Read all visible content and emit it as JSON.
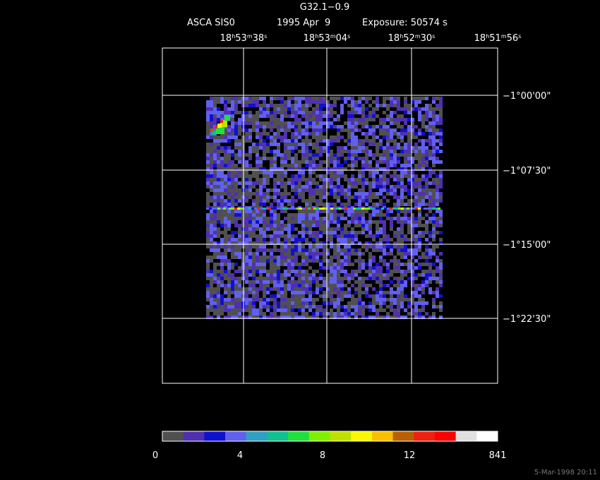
{
  "header": {
    "title": "G32.1−0.9",
    "instrument": "ASCA SIS0",
    "date": "1995 Apr  9",
    "exposure": "Exposure: 50574 s"
  },
  "ra_labels": [
    [
      "18",
      "h",
      "53",
      "m",
      "38",
      "s"
    ],
    [
      "18",
      "h",
      "53",
      "m",
      "04",
      "s"
    ],
    [
      "18",
      "h",
      "52",
      "m",
      "30",
      "s"
    ],
    [
      "18",
      "h",
      "51",
      "m",
      "56",
      "s"
    ]
  ],
  "dec_labels": [
    "−1°00'00\"",
    "−1°07'30\"",
    "−1°15'00\"",
    "−1°22'30\""
  ],
  "colorbar": {
    "colors": [
      "#505050",
      "#5030b0",
      "#1010d0",
      "#6060f0",
      "#30a0c0",
      "#10c090",
      "#20e040",
      "#80f000",
      "#c0e000",
      "#f8f800",
      "#f8c000",
      "#b86000",
      "#f02010",
      "#ff0000",
      "#e0e0e0",
      "#ffffff"
    ],
    "labels": [
      "0",
      "4",
      "8",
      "12",
      "841"
    ]
  },
  "footer": "5-Mar-1998 20:11"
}
